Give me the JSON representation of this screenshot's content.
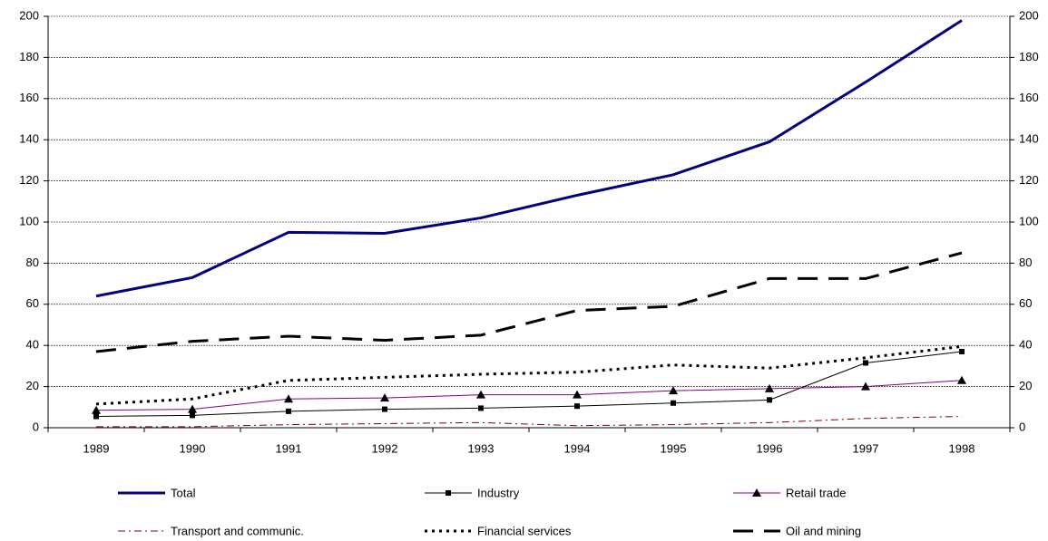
{
  "chart_data": {
    "type": "line",
    "categories": [
      "1989",
      "1990",
      "1991",
      "1992",
      "1993",
      "1994",
      "1995",
      "1996",
      "1997",
      "1998"
    ],
    "ylim": [
      0,
      200
    ],
    "yticks": [
      0,
      20,
      40,
      60,
      80,
      100,
      120,
      140,
      160,
      180,
      200
    ],
    "y2lim": [
      0,
      200
    ],
    "y2ticks": [
      0,
      20,
      40,
      60,
      80,
      100,
      120,
      140,
      160,
      180,
      200
    ],
    "grid": true,
    "legend": "bottom",
    "series": [
      {
        "name": "Total",
        "color": "#000080",
        "width": 3,
        "dash": "solid",
        "marker": "none",
        "values": [
          64,
          73,
          95,
          94.5,
          102,
          113,
          123,
          139,
          168,
          198
        ]
      },
      {
        "name": "Industry",
        "color": "#000000",
        "width": 1,
        "dash": "solid",
        "marker": "square",
        "values": [
          5.5,
          6,
          8,
          9,
          9.5,
          10.5,
          12,
          13.5,
          31.5,
          37
        ]
      },
      {
        "name": "Retail trade",
        "color": "#800080",
        "width": 1,
        "dash": "solid",
        "marker": "triangle",
        "values": [
          8.5,
          9,
          14,
          14.5,
          16,
          16,
          18,
          19,
          20,
          23
        ]
      },
      {
        "name": "Transport and communic.",
        "color": "#800000",
        "width": 1,
        "dash": "dashdot",
        "marker": "none",
        "values": [
          0.5,
          0.5,
          1.5,
          2,
          2.5,
          1,
          1.5,
          2.5,
          4.5,
          5.5
        ]
      },
      {
        "name": "Financial services",
        "color": "#000000",
        "width": 3,
        "dash": "dot",
        "marker": "none",
        "values": [
          11.5,
          14,
          23,
          24.5,
          26,
          27,
          30.5,
          29,
          34,
          39.5
        ]
      },
      {
        "name": "Oil and mining",
        "color": "#000000",
        "width": 3,
        "dash": "longdash",
        "marker": "none",
        "values": [
          37,
          42,
          44.5,
          42.5,
          45,
          57,
          59,
          72.5,
          72.5,
          85
        ]
      }
    ]
  }
}
